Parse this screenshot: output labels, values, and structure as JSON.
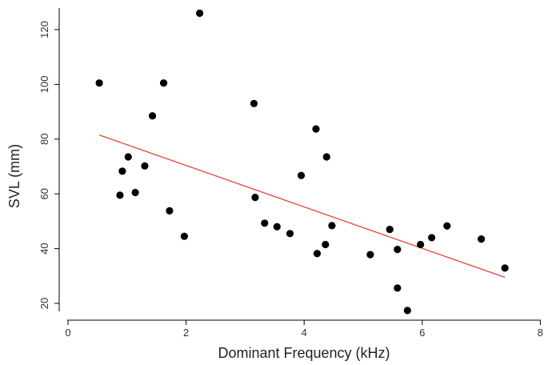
{
  "chart_data": {
    "type": "scatter",
    "xlabel": "Dominant Frequency (kHz)",
    "ylabel": "SVL (mm)",
    "xlim": [
      0,
      8
    ],
    "ylim": [
      20,
      120
    ],
    "x_ticks": [
      "0",
      "2",
      "4",
      "6",
      "8"
    ],
    "y_ticks": [
      "20",
      "40",
      "60",
      "80",
      "100",
      "120"
    ],
    "grid": false,
    "point_color": "#000000",
    "fit_color": "#e8423a",
    "points": [
      {
        "x": 0.53,
        "y": 100.5
      },
      {
        "x": 0.88,
        "y": 59.5
      },
      {
        "x": 0.92,
        "y": 68.3
      },
      {
        "x": 1.02,
        "y": 73.5
      },
      {
        "x": 1.14,
        "y": 60.5
      },
      {
        "x": 1.3,
        "y": 70.2
      },
      {
        "x": 1.43,
        "y": 88.5
      },
      {
        "x": 1.62,
        "y": 100.5
      },
      {
        "x": 1.72,
        "y": 53.8
      },
      {
        "x": 1.97,
        "y": 44.5
      },
      {
        "x": 2.23,
        "y": 126.0
      },
      {
        "x": 3.15,
        "y": 93.0
      },
      {
        "x": 3.17,
        "y": 58.7
      },
      {
        "x": 3.33,
        "y": 49.3
      },
      {
        "x": 3.54,
        "y": 48.0
      },
      {
        "x": 3.76,
        "y": 45.5
      },
      {
        "x": 3.95,
        "y": 66.7
      },
      {
        "x": 4.2,
        "y": 83.7
      },
      {
        "x": 4.22,
        "y": 38.2
      },
      {
        "x": 4.36,
        "y": 41.5
      },
      {
        "x": 4.38,
        "y": 73.5
      },
      {
        "x": 4.47,
        "y": 48.4
      },
      {
        "x": 5.12,
        "y": 37.8
      },
      {
        "x": 5.45,
        "y": 47.0
      },
      {
        "x": 5.58,
        "y": 39.7
      },
      {
        "x": 5.58,
        "y": 25.6
      },
      {
        "x": 5.75,
        "y": 17.4
      },
      {
        "x": 5.97,
        "y": 41.5
      },
      {
        "x": 6.16,
        "y": 44.0
      },
      {
        "x": 6.42,
        "y": 48.3
      },
      {
        "x": 7.0,
        "y": 43.5
      },
      {
        "x": 7.4,
        "y": 32.9
      }
    ],
    "fit_line": {
      "x": [
        0.53,
        7.4
      ],
      "y": [
        81.5,
        29.5
      ]
    }
  }
}
